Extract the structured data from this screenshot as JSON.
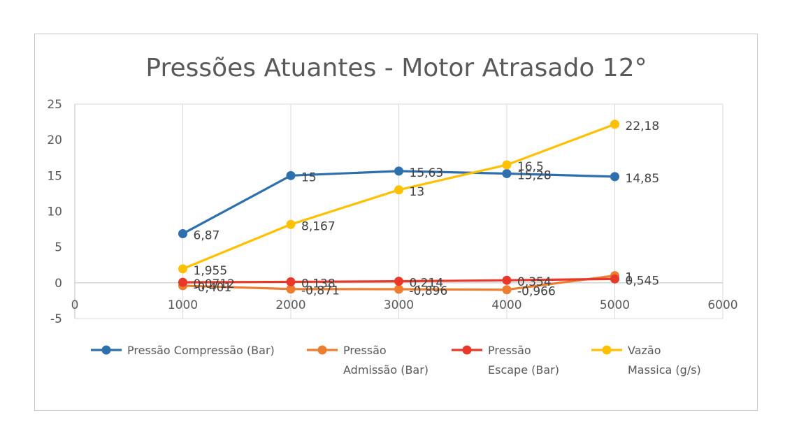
{
  "chart_data": {
    "type": "line",
    "title": "Pressões Atuantes - Motor Atrasado 12°",
    "xlabel": "",
    "ylabel": "",
    "xlim": [
      0,
      6000
    ],
    "ylim": [
      -5,
      25
    ],
    "x_ticks": [
      "0",
      "1000",
      "2000",
      "3000",
      "4000",
      "5000",
      "6000"
    ],
    "y_ticks": [
      "-5",
      "0",
      "5",
      "10",
      "15",
      "20",
      "25"
    ],
    "grid": "vertical",
    "legend_position": "bottom",
    "x": [
      1000,
      2000,
      3000,
      4000,
      5000
    ],
    "series": [
      {
        "name_lines": [
          "Pressão Compressão (Bar)"
        ],
        "color": "#2e6fad",
        "values": [
          6.87,
          15,
          15.63,
          15.28,
          14.85
        ],
        "labels": [
          "6,87",
          "15",
          "15,63",
          "15,28",
          "14,85"
        ]
      },
      {
        "name_lines": [
          "Pressão",
          "Admissão (Bar)"
        ],
        "color": "#ed7d31",
        "values": [
          -0.401,
          -0.871,
          -0.896,
          -0.966,
          1
        ],
        "labels": [
          "-0,401",
          "-0,871",
          "-0,896",
          "-0,966",
          "1"
        ]
      },
      {
        "name_lines": [
          "Pressão",
          "Escape (Bar)"
        ],
        "color": "#e8382a",
        "values": [
          0.0712,
          0.138,
          0.214,
          0.354,
          0.545
        ],
        "labels": [
          "0,0712",
          "0,138",
          "0,214",
          "0,354",
          "0,545"
        ]
      },
      {
        "name_lines": [
          "Vazão",
          "Massica (g/s)"
        ],
        "color": "#ffc000",
        "values": [
          1.955,
          8.167,
          13,
          16.5,
          22.18
        ],
        "labels": [
          "1,955",
          "8,167",
          "13",
          "16,5",
          "22,18"
        ]
      }
    ]
  }
}
